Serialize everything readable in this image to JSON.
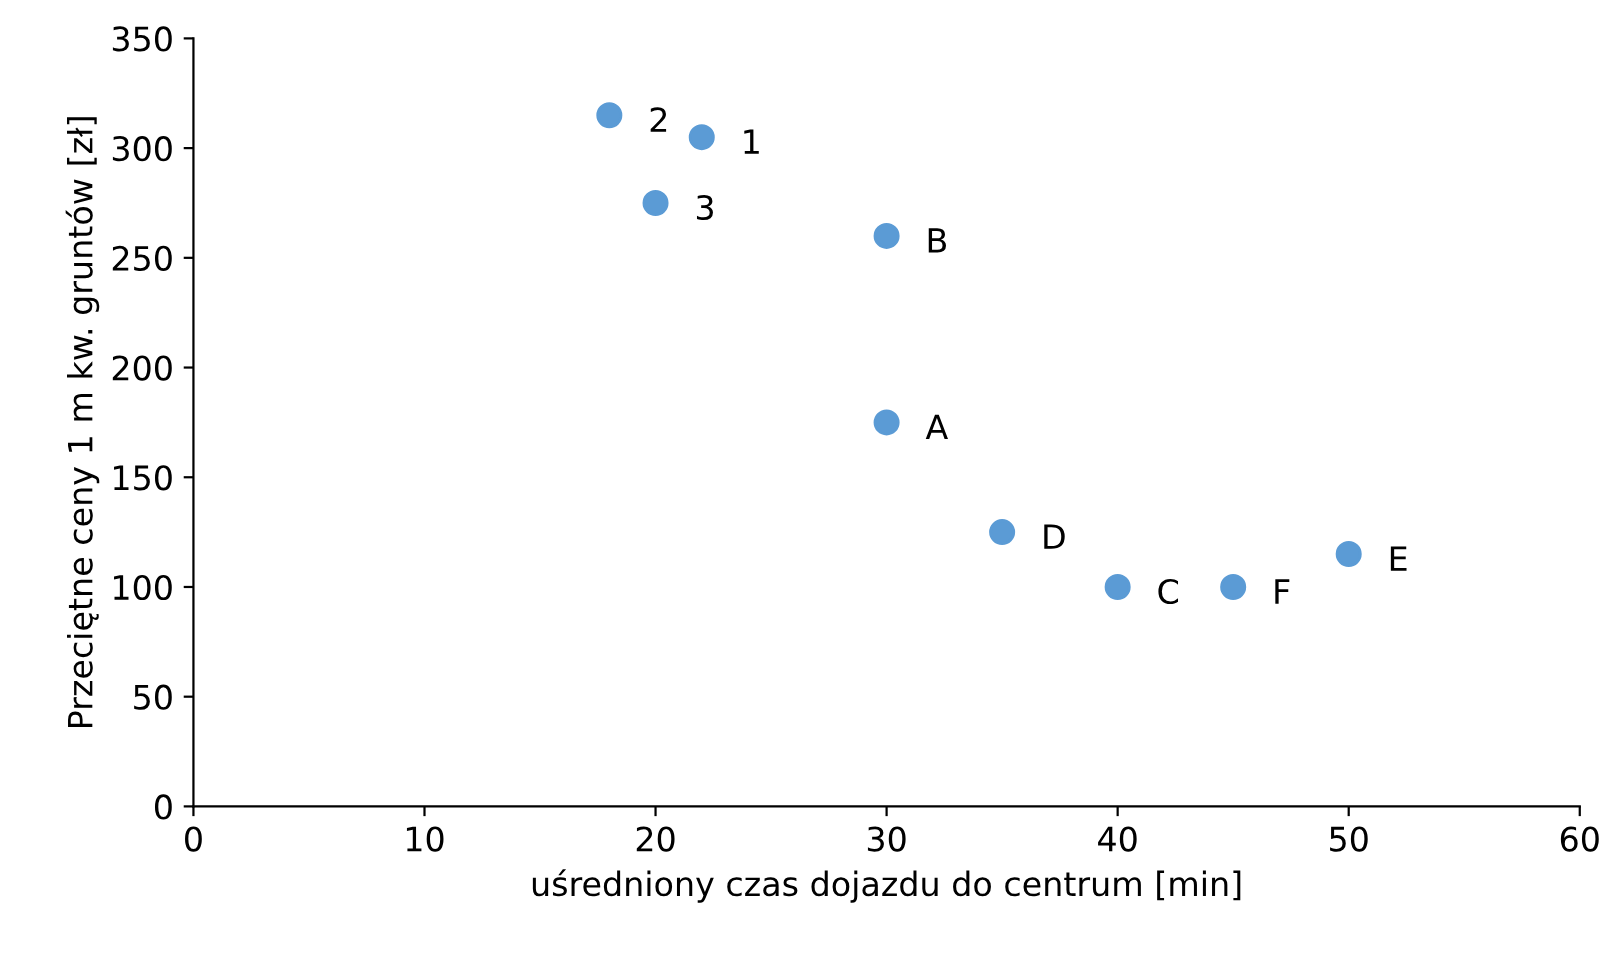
{
  "chart_data": {
    "type": "scatter",
    "xlabel": "uśredniony czas dojazdu do centrum [min]",
    "ylabel": "Przeciętne ceny 1 m kw. gruntów [zł]",
    "x": [
      18,
      22,
      20,
      30,
      30,
      35,
      40,
      45,
      50
    ],
    "series": [
      {
        "color": "#5b9bd5",
        "values": [
          315,
          305,
          275,
          260,
          175,
          125,
          100,
          100,
          115
        ]
      }
    ],
    "annotations": [
      {
        "text": "2",
        "x": 18,
        "y": 315
      },
      {
        "text": "1",
        "x": 22,
        "y": 305
      },
      {
        "text": "3",
        "x": 20,
        "y": 275
      },
      {
        "text": "B",
        "x": 30,
        "y": 260
      },
      {
        "text": "A",
        "x": 30,
        "y": 175
      },
      {
        "text": "D",
        "x": 35,
        "y": 125
      },
      {
        "text": "C",
        "x": 40,
        "y": 100
      },
      {
        "text": "F",
        "x": 45,
        "y": 100
      },
      {
        "text": "E",
        "x": 50,
        "y": 115
      }
    ],
    "xlim": [
      0,
      60
    ],
    "xticks": [
      0,
      10,
      20,
      30,
      40,
      50,
      60
    ],
    "ylim": [
      0,
      350
    ],
    "yticks": [
      0,
      50,
      100,
      150,
      200,
      250,
      300,
      350
    ],
    "marker": "circle",
    "grid": false,
    "legend": false
  }
}
